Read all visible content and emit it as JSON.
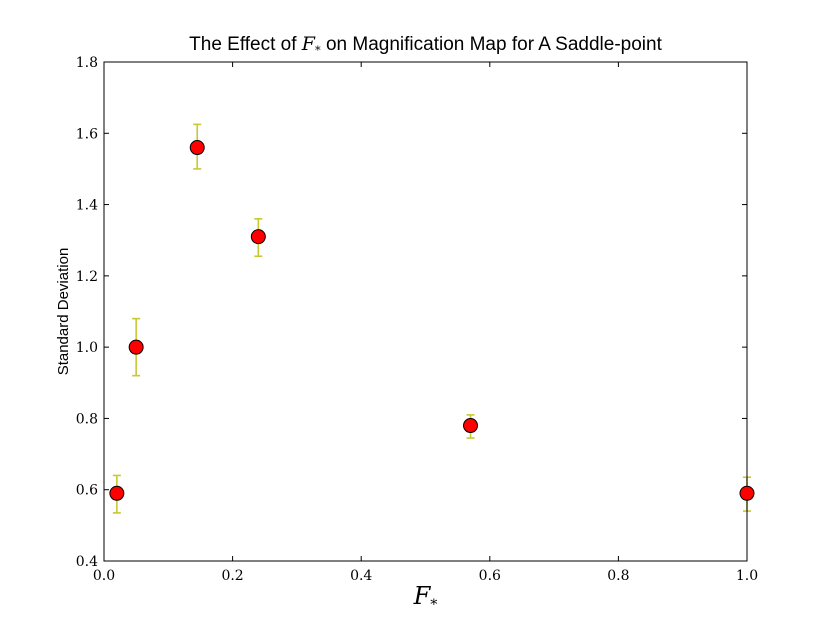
{
  "chart_data": {
    "type": "scatter",
    "title": {
      "prefix": "The Effect of ",
      "symbol": "F",
      "subscript": "*",
      "suffix": " on Magnification Map for A Saddle-point"
    },
    "xlabel": {
      "symbol": "F",
      "subscript": "*"
    },
    "ylabel": "Standard Deviation",
    "xlim": [
      0.0,
      1.0
    ],
    "ylim": [
      0.4,
      1.8
    ],
    "xticks": [
      0.0,
      0.2,
      0.4,
      0.6,
      0.8,
      1.0
    ],
    "xtick_labels": [
      "0.0",
      "0.2",
      "0.4",
      "0.6",
      "0.8",
      "1.0"
    ],
    "yticks": [
      0.4,
      0.6,
      0.8,
      1.0,
      1.2,
      1.4,
      1.6,
      1.8
    ],
    "ytick_labels": [
      "0.4",
      "0.6",
      "0.8",
      "1.0",
      "1.2",
      "1.4",
      "1.6",
      "1.8"
    ],
    "grid": false,
    "legend": "none",
    "marker_color": "#ff0000",
    "marker_edge_color": "#000000",
    "errorbar_color": "#c8c832",
    "points": [
      {
        "x": 0.02,
        "y": 0.59,
        "yerr_low": 0.535,
        "yerr_high": 0.64
      },
      {
        "x": 0.05,
        "y": 1.0,
        "yerr_low": 0.92,
        "yerr_high": 1.08
      },
      {
        "x": 0.145,
        "y": 1.56,
        "yerr_low": 1.5,
        "yerr_high": 1.625
      },
      {
        "x": 0.24,
        "y": 1.31,
        "yerr_low": 1.255,
        "yerr_high": 1.36
      },
      {
        "x": 0.57,
        "y": 0.78,
        "yerr_low": 0.745,
        "yerr_high": 0.81
      },
      {
        "x": 1.0,
        "y": 0.59,
        "yerr_low": 0.54,
        "yerr_high": 0.635
      }
    ]
  }
}
